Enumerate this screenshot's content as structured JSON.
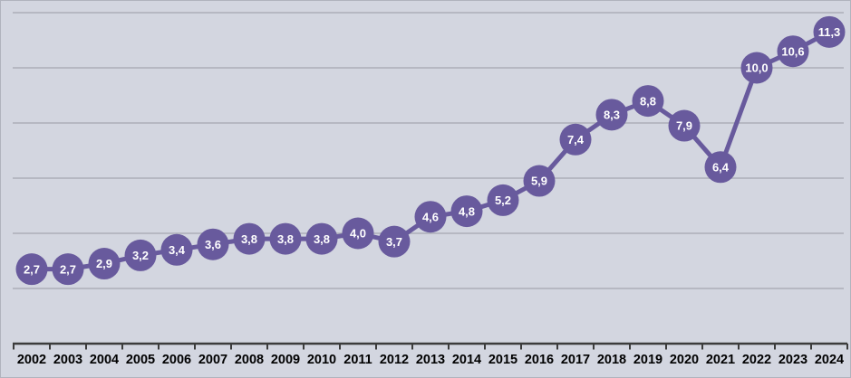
{
  "chart_data": {
    "type": "line",
    "title": "",
    "xlabel": "",
    "ylabel": "",
    "categories": [
      "2002",
      "2003",
      "2004",
      "2005",
      "2006",
      "2007",
      "2008",
      "2009",
      "2010",
      "2011",
      "2012",
      "2013",
      "2014",
      "2015",
      "2016",
      "2017",
      "2018",
      "2019",
      "2020",
      "2021",
      "2022",
      "2023",
      "2024"
    ],
    "values": [
      2.7,
      2.7,
      2.9,
      3.2,
      3.4,
      3.6,
      3.8,
      3.8,
      3.8,
      4.0,
      3.7,
      4.6,
      4.8,
      5.2,
      5.9,
      7.4,
      8.3,
      8.8,
      7.9,
      6.4,
      10.0,
      10.6,
      11.3
    ],
    "point_labels": [
      "2,7",
      "2,7",
      "2,9",
      "3,2",
      "3,4",
      "3,6",
      "3,8",
      "3,8",
      "3,8",
      "4,0",
      "3,7",
      "4,6",
      "4,8",
      "5,2",
      "5,9",
      "7,4",
      "8,3",
      "8,8",
      "7,9",
      "6,4",
      "10,0",
      "10,6",
      "11,3"
    ],
    "ylim": [
      0,
      12.5
    ],
    "gridline_values": [
      2,
      4,
      6,
      8,
      10,
      12
    ],
    "grid": "horizontal only",
    "legend": "none",
    "y_axis_labels_visible": false,
    "decimal_separator": ",",
    "colors": {
      "background": "#d3d6e0",
      "border": "#b0b3bd",
      "gridline": "#acaeb8",
      "axis": "#3c3c3c",
      "line": "#685a9d",
      "marker_fill": "#685a9d",
      "marker_label": "#ffffff",
      "tick_label": "#000000"
    }
  }
}
